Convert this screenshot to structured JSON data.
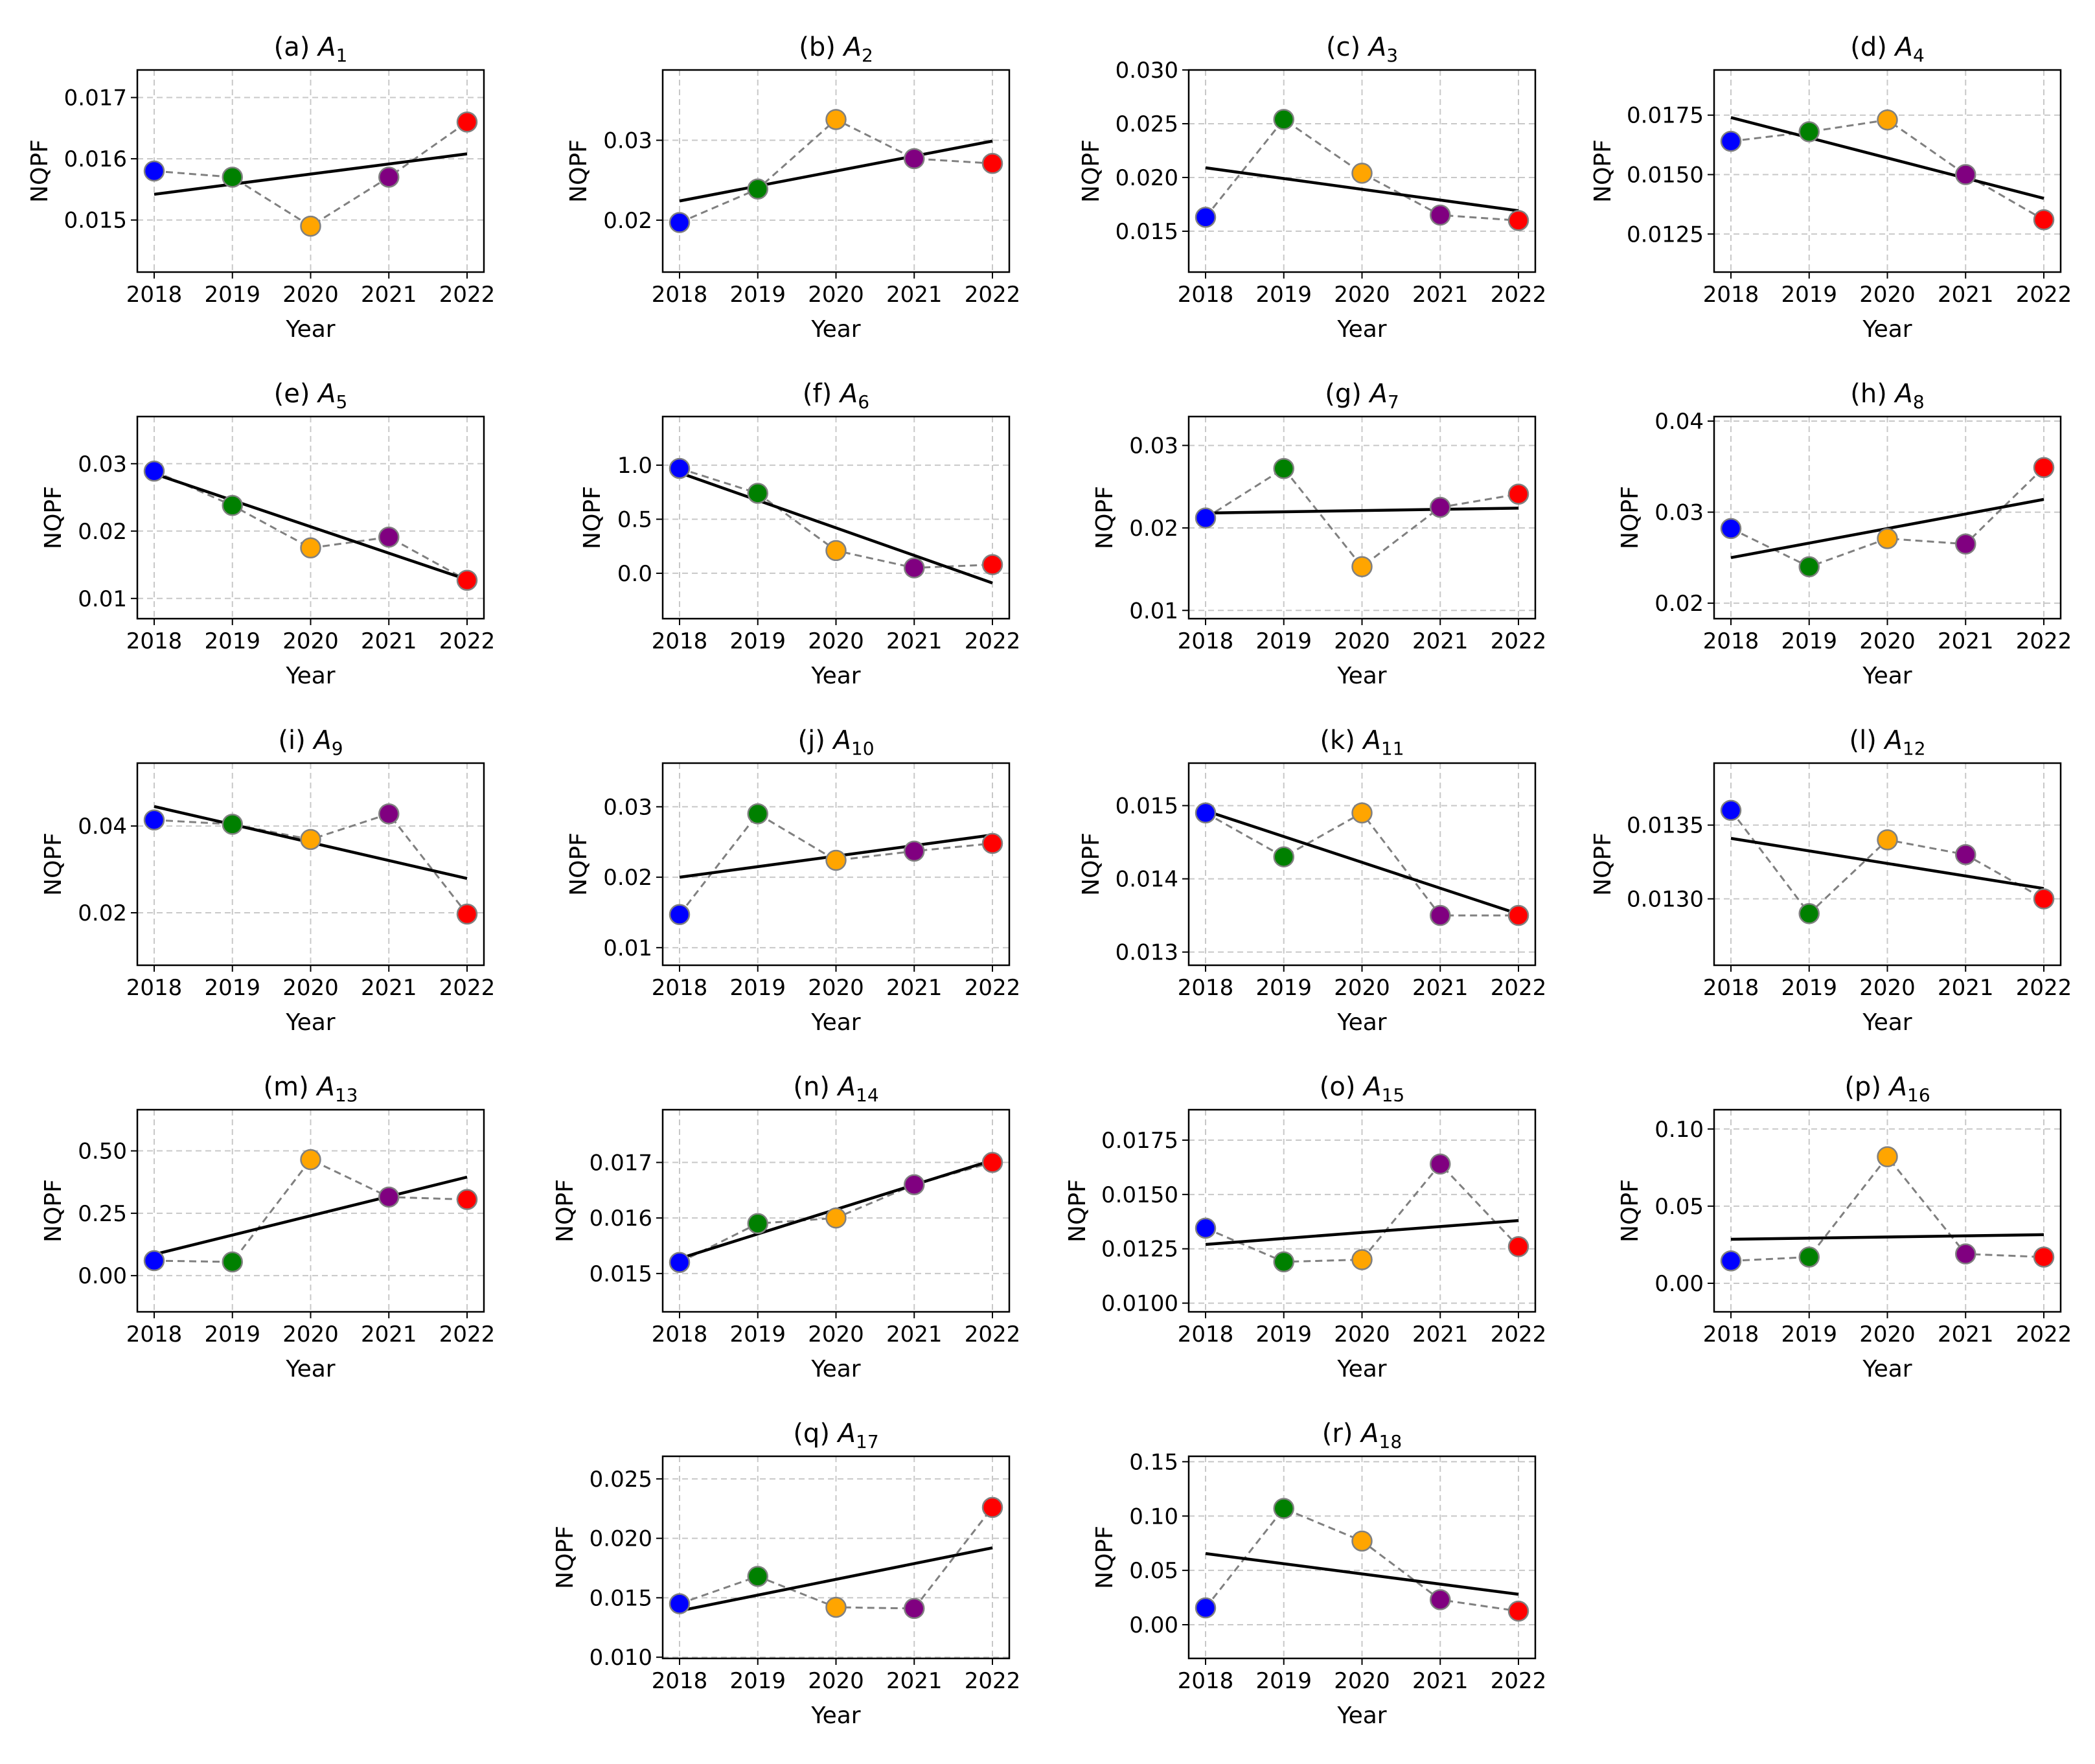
{
  "chart_data": {
    "type": "line",
    "xlabel": "Year",
    "ylabel": "NQPF",
    "x": [
      "2018",
      "2019",
      "2020",
      "2021",
      "2022"
    ],
    "point_colors": [
      "#0000ff",
      "#008000",
      "#ffa500",
      "#800080",
      "#ff0000"
    ],
    "marker_edge_color": "#808080",
    "connector_color": "#808080",
    "trend_color": "#000000",
    "grid": true,
    "panels": [
      {
        "label": "(a)",
        "var": "A",
        "sub": "1",
        "values": [
          0.0158,
          0.0157,
          0.0149,
          0.0157,
          0.0166
        ],
        "trend": [
          0.01542,
          0.01608
        ],
        "ylim": [
          0.01415,
          0.01745
        ],
        "yticks": [
          0.015,
          0.016,
          0.017
        ],
        "tick_labels": [
          "0.015",
          "0.016",
          "0.017"
        ]
      },
      {
        "label": "(b)",
        "var": "A",
        "sub": "2",
        "values": [
          0.0197,
          0.0239,
          0.0326,
          0.0277,
          0.0271
        ],
        "trend": [
          0.0224,
          0.0299
        ],
        "ylim": [
          0.0135,
          0.0388
        ],
        "yticks": [
          0.02,
          0.03
        ],
        "tick_labels": [
          "0.02",
          "0.03"
        ]
      },
      {
        "label": "(c)",
        "var": "A",
        "sub": "3",
        "values": [
          0.0163,
          0.0254,
          0.0204,
          0.0165,
          0.016
        ],
        "trend": [
          0.0209,
          0.0169
        ],
        "ylim": [
          0.0112,
          0.03
        ],
        "yticks": [
          0.015,
          0.02,
          0.025,
          0.03
        ],
        "tick_labels": [
          "0.015",
          "0.020",
          "0.025",
          "0.030"
        ]
      },
      {
        "label": "(d)",
        "var": "A",
        "sub": "4",
        "values": [
          0.0164,
          0.0168,
          0.0173,
          0.015,
          0.0131
        ],
        "trend": [
          0.0174,
          0.014
        ],
        "ylim": [
          0.0109,
          0.0194
        ],
        "yticks": [
          0.0125,
          0.015,
          0.0175
        ],
        "tick_labels": [
          "0.0125",
          "0.0150",
          "0.0175"
        ]
      },
      {
        "label": "(e)",
        "var": "A",
        "sub": "5",
        "values": [
          0.0289,
          0.0238,
          0.0175,
          0.0191,
          0.0127
        ],
        "trend": [
          0.0285,
          0.0128
        ],
        "ylim": [
          0.007,
          0.037
        ],
        "yticks": [
          0.01,
          0.02,
          0.03
        ],
        "tick_labels": [
          "0.01",
          "0.02",
          "0.03"
        ]
      },
      {
        "label": "(f)",
        "var": "A",
        "sub": "6",
        "values": [
          0.97,
          0.74,
          0.21,
          0.05,
          0.08
        ],
        "trend": [
          0.93,
          -0.09
        ],
        "ylim": [
          -0.42,
          1.45
        ],
        "yticks": [
          0.0,
          0.5,
          1.0
        ],
        "tick_labels": [
          "0.0",
          "0.5",
          "1.0"
        ]
      },
      {
        "label": "(g)",
        "var": "A",
        "sub": "7",
        "values": [
          0.0212,
          0.0272,
          0.0153,
          0.0225,
          0.0241
        ],
        "trend": [
          0.0218,
          0.0224
        ],
        "ylim": [
          0.009,
          0.0335
        ],
        "yticks": [
          0.01,
          0.02,
          0.03
        ],
        "tick_labels": [
          "0.01",
          "0.02",
          "0.03"
        ]
      },
      {
        "label": "(h)",
        "var": "A",
        "sub": "8",
        "values": [
          0.0282,
          0.024,
          0.0271,
          0.0265,
          0.0349
        ],
        "trend": [
          0.025,
          0.0314
        ],
        "ylim": [
          0.0183,
          0.0405
        ],
        "yticks": [
          0.02,
          0.03,
          0.04
        ],
        "tick_labels": [
          "0.02",
          "0.03",
          "0.04"
        ]
      },
      {
        "label": "(i)",
        "var": "A",
        "sub": "9",
        "values": [
          0.0414,
          0.0404,
          0.0369,
          0.0428,
          0.0197
        ],
        "trend": [
          0.0445,
          0.0279
        ],
        "ylim": [
          0.0079,
          0.0545
        ],
        "yticks": [
          0.02,
          0.04
        ],
        "tick_labels": [
          "0.02",
          "0.04"
        ]
      },
      {
        "label": "(j)",
        "var": "A",
        "sub": "10",
        "values": [
          0.0147,
          0.029,
          0.0224,
          0.0237,
          0.0248
        ],
        "trend": [
          0.02,
          0.026
        ],
        "ylim": [
          0.0075,
          0.0362
        ],
        "yticks": [
          0.01,
          0.02,
          0.03
        ],
        "tick_labels": [
          "0.01",
          "0.02",
          "0.03"
        ]
      },
      {
        "label": "(k)",
        "var": "A",
        "sub": "11",
        "values": [
          0.0149,
          0.0143,
          0.0149,
          0.0135,
          0.0135
        ],
        "trend": [
          0.01493,
          0.01352
        ],
        "ylim": [
          0.01282,
          0.01558
        ],
        "yticks": [
          0.013,
          0.014,
          0.015
        ],
        "tick_labels": [
          "0.013",
          "0.014",
          "0.015"
        ]
      },
      {
        "label": "(l)",
        "var": "A",
        "sub": "12",
        "values": [
          0.0136,
          0.0129,
          0.0134,
          0.0133,
          0.013
        ],
        "trend": [
          0.01341,
          0.01307
        ],
        "ylim": [
          0.01255,
          0.01392
        ],
        "yticks": [
          0.013,
          0.0135
        ],
        "tick_labels": [
          "0.0130",
          "0.0135"
        ]
      },
      {
        "label": "(m)",
        "var": "A",
        "sub": "13",
        "values": [
          0.06,
          0.055,
          0.465,
          0.315,
          0.305
        ],
        "trend": [
          0.085,
          0.395
        ],
        "ylim": [
          -0.145,
          0.665
        ],
        "yticks": [
          0.0,
          0.25,
          0.5
        ],
        "tick_labels": [
          "0.00",
          "0.25",
          "0.50"
        ]
      },
      {
        "label": "(n)",
        "var": "A",
        "sub": "14",
        "values": [
          0.0152,
          0.0159,
          0.016,
          0.0166,
          0.017
        ],
        "trend": [
          0.01527,
          0.01704
        ],
        "ylim": [
          0.01431,
          0.01795
        ],
        "yticks": [
          0.015,
          0.016,
          0.017
        ],
        "tick_labels": [
          "0.015",
          "0.016",
          "0.017"
        ]
      },
      {
        "label": "(o)",
        "var": "A",
        "sub": "15",
        "values": [
          0.01345,
          0.0119,
          0.012,
          0.0164,
          0.0126
        ],
        "trend": [
          0.0127,
          0.0138
        ],
        "ylim": [
          0.0096,
          0.0189
        ],
        "yticks": [
          0.01,
          0.0125,
          0.015,
          0.0175
        ],
        "tick_labels": [
          "0.0100",
          "0.0125",
          "0.0150",
          "0.0175"
        ]
      },
      {
        "label": "(p)",
        "var": "A",
        "sub": "16",
        "values": [
          0.0145,
          0.017,
          0.082,
          0.019,
          0.017
        ],
        "trend": [
          0.0285,
          0.0315
        ],
        "ylim": [
          -0.0185,
          0.1125
        ],
        "yticks": [
          0.0,
          0.05,
          0.1
        ],
        "tick_labels": [
          "0.00",
          "0.05",
          "0.10"
        ]
      },
      {
        "label": "(q)",
        "var": "A",
        "sub": "17",
        "values": [
          0.0145,
          0.0168,
          0.0142,
          0.0141,
          0.0226
        ],
        "trend": [
          0.0139,
          0.0192
        ],
        "ylim": [
          0.0099,
          0.0269
        ],
        "yticks": [
          0.01,
          0.015,
          0.02,
          0.025
        ],
        "tick_labels": [
          "0.010",
          "0.015",
          "0.020",
          "0.025"
        ]
      },
      {
        "label": "(r)",
        "var": "A",
        "sub": "18",
        "values": [
          0.0155,
          0.107,
          0.077,
          0.023,
          0.0125
        ],
        "trend": [
          0.0655,
          0.028
        ],
        "ylim": [
          -0.031,
          0.155
        ],
        "yticks": [
          0.0,
          0.05,
          0.1,
          0.15
        ],
        "tick_labels": [
          "0.00",
          "0.05",
          "0.10",
          "0.15"
        ]
      }
    ]
  }
}
